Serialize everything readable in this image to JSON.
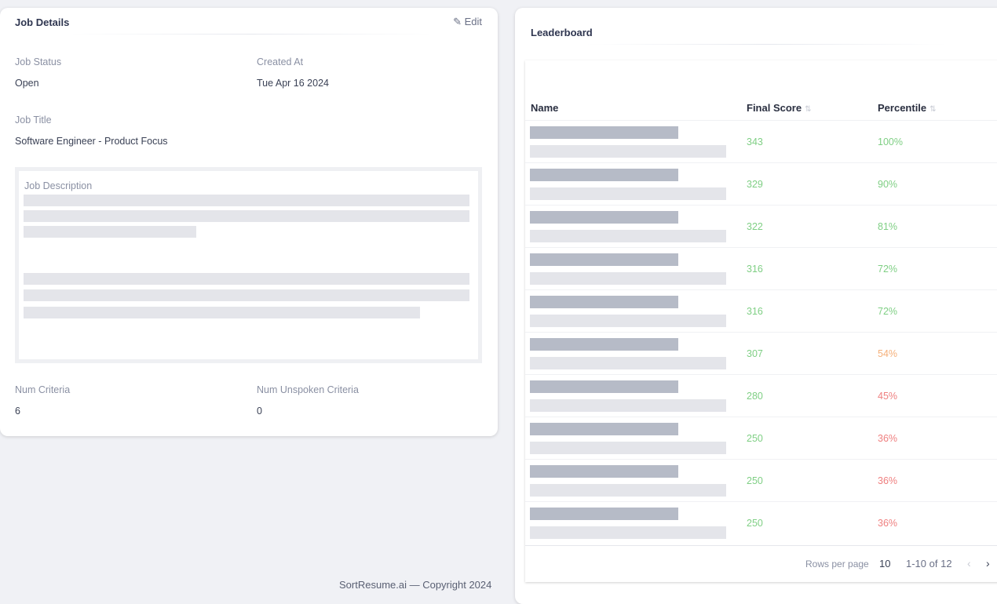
{
  "job_details": {
    "title": "Job Details",
    "edit_label": "Edit",
    "edit_icon": "pencil-icon",
    "job_status_label": "Job Status",
    "job_status": "Open",
    "created_at_label": "Created At",
    "created_at": "Tue Apr 16 2024",
    "job_title_label": "Job Title",
    "job_title": "Software Engineer - Product Focus",
    "description_label": "Job Description",
    "num_criteria_label": "Num Criteria",
    "num_criteria": "6",
    "num_unspoken_label": "Num Unspoken Criteria",
    "num_unspoken": "0"
  },
  "leaderboard": {
    "title": "Leaderboard",
    "columns": [
      "Name",
      "Final Score",
      "Percentile"
    ],
    "rows": [
      {
        "score": "343",
        "percentile": "100%",
        "color": "#7fcf84"
      },
      {
        "score": "329",
        "percentile": "90%",
        "color": "#7fcf84"
      },
      {
        "score": "322",
        "percentile": "81%",
        "color": "#7fcf84"
      },
      {
        "score": "316",
        "percentile": "72%",
        "color": "#7fcf84"
      },
      {
        "score": "316",
        "percentile": "72%",
        "color": "#7fcf84"
      },
      {
        "score": "307",
        "percentile": "54%",
        "color": "#f5b07a"
      },
      {
        "score": "280",
        "percentile": "45%",
        "color": "#ef7f7f"
      },
      {
        "score": "250",
        "percentile": "36%",
        "color": "#ef7f7f"
      },
      {
        "score": "250",
        "percentile": "36%",
        "color": "#ef7f7f"
      },
      {
        "score": "250",
        "percentile": "36%",
        "color": "#ef7f7f"
      }
    ],
    "footer": {
      "rows_per_page_label": "Rows per page",
      "rows_per_page": "10",
      "range": "1-10 of 12"
    }
  },
  "copyright": "SortResume.ai — Copyright 2024"
}
